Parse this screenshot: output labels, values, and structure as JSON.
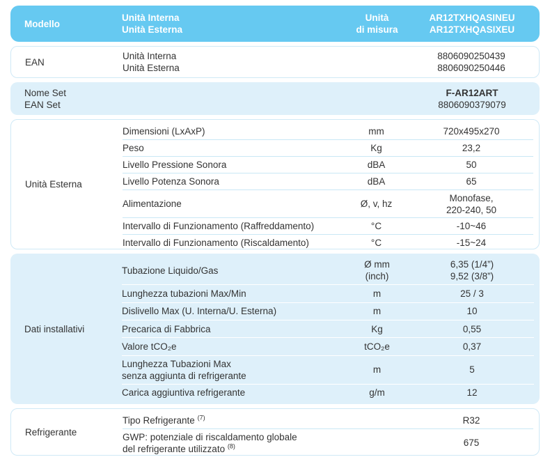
{
  "header": {
    "model_label": "Modello",
    "unit_lines": [
      "Unità Interna",
      "Unità Esterna"
    ],
    "measure_lines": [
      "Unità",
      "di misura"
    ],
    "model_lines": [
      "AR12TXHQASINEU",
      "AR12TXHQASIXEU"
    ]
  },
  "ean": {
    "label": "EAN",
    "prop_lines": [
      "Unità Interna",
      "Unità Esterna"
    ],
    "value_lines": [
      "8806090250439",
      "8806090250446"
    ]
  },
  "set": {
    "label_lines": [
      "Nome Set",
      "EAN Set"
    ],
    "name_value": "F-AR12ART",
    "ean_value": "8806090379079"
  },
  "sections": [
    {
      "label": "Unità Esterna",
      "rows": [
        {
          "prop": "Dimensioni (LxAxP)",
          "unit": "mm",
          "value": "720x495x270"
        },
        {
          "prop": "Peso",
          "unit": "Kg",
          "value": "23,2"
        },
        {
          "prop": "Livello Pressione Sonora",
          "unit": "dBA",
          "value": "50"
        },
        {
          "prop": "Livello Potenza Sonora",
          "unit": "dBA",
          "value": "65"
        },
        {
          "prop": "Alimentazione",
          "unit": "Ø, v, hz",
          "value_lines": [
            "Monofase,",
            "220-240, 50"
          ]
        },
        {
          "prop": "Intervallo di Funzionamento (Raffreddamento)",
          "unit": "°C",
          "value": "-10~46"
        },
        {
          "prop": "Intervallo di Funzionamento (Riscaldamento)",
          "unit": "°C",
          "value": "-15~24"
        }
      ]
    },
    {
      "label": "Dati installativi",
      "rows": [
        {
          "prop": "Tubazione Liquido/Gas",
          "unit_lines": [
            "Ø mm",
            "(inch)"
          ],
          "value_lines": [
            "6,35 (1/4”)",
            "9,52 (3/8”)"
          ]
        },
        {
          "prop": "Lunghezza tubazioni Max/Min",
          "unit": "m",
          "value": "25 / 3"
        },
        {
          "prop": "Dislivello Max (U. Interna/U. Esterna)",
          "unit": "m",
          "value": "10"
        },
        {
          "prop": "Precarica di Fabbrica",
          "unit": "Kg",
          "value": "0,55"
        },
        {
          "prop": "Valore tCO₂e",
          "unit": "tCO₂e",
          "value": "0,37"
        },
        {
          "prop_lines": [
            "Lunghezza Tubazioni Max",
            "senza aggiunta di refrigerante"
          ],
          "unit": "m",
          "value": "5"
        },
        {
          "prop": "Carica aggiuntiva refrigerante",
          "unit": "g/m",
          "value": "12"
        }
      ]
    },
    {
      "label": "Refrigerante",
      "rows": [
        {
          "prop": "Tipo Refrigerante",
          "footnote": "(7)",
          "unit": "",
          "value": "R32"
        },
        {
          "prop_lines": [
            "GWP: potenziale di riscaldamento globale",
            "del refrigerante utilizzato"
          ],
          "footnote": "(8)",
          "unit": "",
          "value": "675"
        }
      ]
    }
  ],
  "colors": {
    "header_bg": "#66c9f1",
    "band_bg": "#def0fa",
    "card_border": "#cfe9f6",
    "separator_light": "#c9e7f5",
    "separator_on_band": "#ffffff",
    "text": "#333333"
  }
}
